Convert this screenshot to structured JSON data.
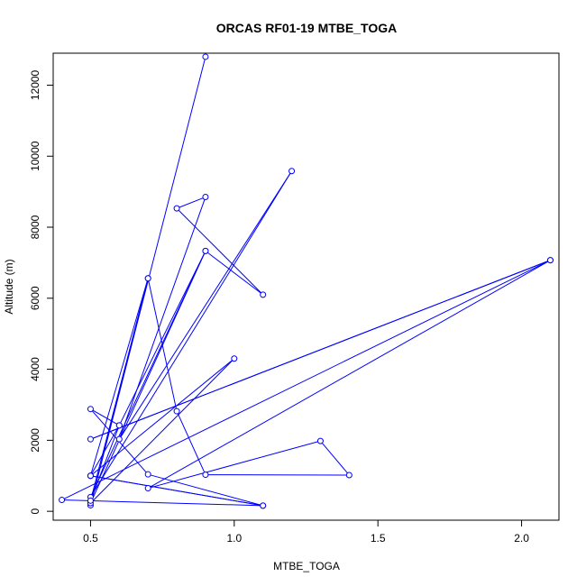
{
  "chart_data": {
    "type": "line",
    "title": "ORCAS RF01-19 MTBE_TOGA",
    "xlabel": "MTBE_TOGA",
    "ylabel": "Altitude (m)",
    "xlim": [
      0.37,
      2.13
    ],
    "ylim": [
      -250,
      12900
    ],
    "x_ticks": [
      0.5,
      1.0,
      1.5,
      2.0
    ],
    "x_tick_labels": [
      "0.5",
      "1.0",
      "1.5",
      "2.0"
    ],
    "y_ticks": [
      0,
      2000,
      4000,
      6000,
      8000,
      10000,
      12000
    ],
    "y_tick_labels": [
      "0",
      "2000",
      "4000",
      "6000",
      "8000",
      "10000",
      "12000"
    ],
    "grid": false,
    "series": [
      {
        "color": "#0000ff",
        "marker": "open-circle",
        "x": [
          0.9,
          0.5,
          0.7,
          0.5,
          0.6,
          0.6,
          0.5,
          0.7,
          1.1,
          0.5,
          1.0,
          0.5,
          0.9,
          0.5,
          1.2,
          0.6,
          0.9,
          0.8,
          1.1,
          0.9,
          0.6,
          0.5,
          0.7,
          0.8,
          0.9,
          1.4,
          1.3,
          0.7,
          2.1,
          0.5,
          2.1,
          0.4,
          1.1,
          0.5
        ],
        "y": [
          12800,
          170,
          6560,
          1000,
          2420,
          2420,
          2880,
          1040,
          160,
          1000,
          4300,
          230,
          7330,
          400,
          9580,
          2030,
          8850,
          8530,
          6100,
          7330,
          2420,
          300,
          6560,
          2820,
          1030,
          1020,
          1980,
          650,
          7070,
          2030,
          7070,
          320,
          160,
          1000
        ]
      }
    ]
  }
}
